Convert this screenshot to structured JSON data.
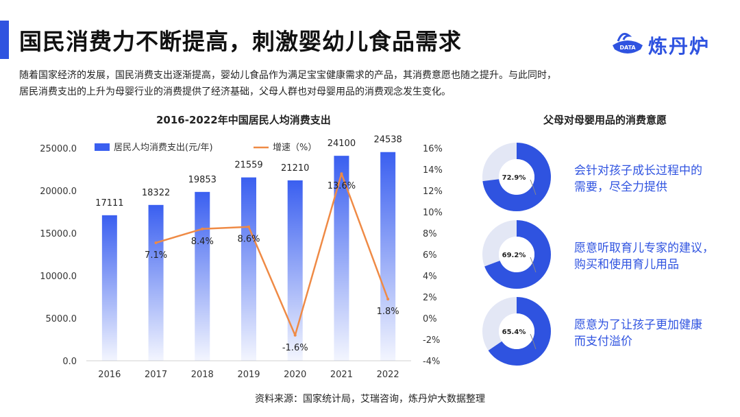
{
  "header": {
    "title": "国民消费力不断提高，刺激婴幼儿食品需求",
    "logo_text": "炼丹炉",
    "logo_badge": "DATA"
  },
  "description": [
    "随着国家经济的发展，国民消费支出逐渐提高，婴幼儿食品作为满足宝宝健康需求的产品，其消费意愿也随之提升。与此同时，",
    "居民消费支出的上升为母婴行业的消费提供了经济基础，父母人群也对母婴用品的消费观念发生变化。"
  ],
  "chart_data": [
    {
      "type": "bar",
      "title": "2016-2022年中国居民人均消费支出",
      "categories": [
        "2016",
        "2017",
        "2018",
        "2019",
        "2020",
        "2021",
        "2022"
      ],
      "series": [
        {
          "name": "居民人均消费支出(元/年)",
          "type": "bar",
          "axis": "left",
          "values": [
            17111,
            18322,
            19853,
            21559,
            21210,
            24100,
            24538
          ],
          "labels": [
            "17111",
            "18322",
            "19853",
            "21559",
            "21210",
            "24100",
            "24538"
          ]
        },
        {
          "name": "增速（%）",
          "type": "line",
          "axis": "right",
          "values": [
            null,
            7.1,
            8.4,
            8.6,
            -1.6,
            13.6,
            1.8
          ],
          "labels": [
            "",
            "7.1%",
            "8.4%",
            "8.6%",
            "-1.6%",
            "13.6%",
            "1.8%"
          ]
        }
      ],
      "y_left": {
        "range": [
          0,
          25000
        ],
        "ticks": [
          "0.0",
          "5000.0",
          "10000.0",
          "15000.0",
          "20000.0",
          "25000.0"
        ]
      },
      "y_right": {
        "range": [
          -4,
          16
        ],
        "ticks": [
          "-4%",
          "-2%",
          "0%",
          "2%",
          "4%",
          "6%",
          "8%",
          "10%",
          "12%",
          "14%",
          "16%"
        ]
      },
      "legend": "top",
      "colors": {
        "bar": "#3a5ff0",
        "line": "#ef8a45"
      }
    },
    {
      "type": "pie",
      "title": "父母对母婴用品的消费意愿",
      "items": [
        {
          "value": 72.9,
          "label": "72.9%",
          "text": [
            "会针对孩子成长过程中的",
            "需要，尽全力提供"
          ]
        },
        {
          "value": 69.2,
          "label": "69.2%",
          "text": [
            "愿意听取育儿专家的建议，",
            "购买和使用育儿用品"
          ]
        },
        {
          "value": 65.4,
          "label": "65.4%",
          "text": [
            "愿意为了让孩子更加健康",
            "而支付溢价"
          ]
        }
      ],
      "colors": {
        "filled": "#2f53e0",
        "rest": "#e3e7f5"
      }
    }
  ],
  "source": "资料来源：国家统计局，艾瑞咨询，炼丹炉大数据整理"
}
